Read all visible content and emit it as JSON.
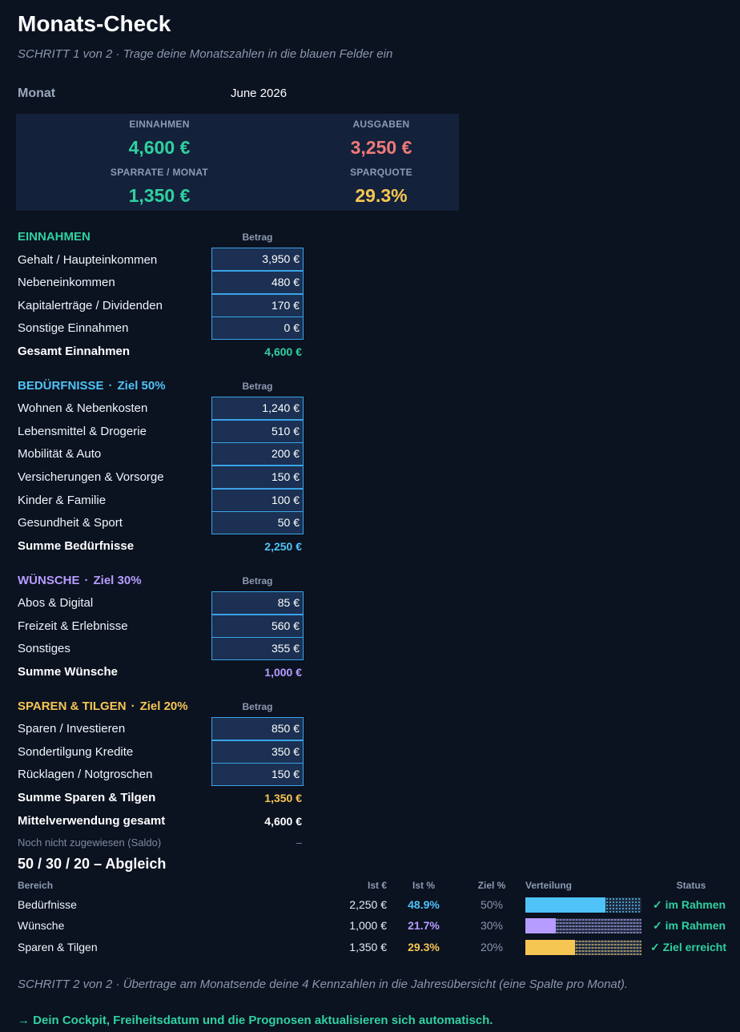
{
  "header": {
    "title": "Monats-Check",
    "subtitle": "SCHRITT 1 von 2 · Trage deine Monatszahlen in die blauen Felder ein",
    "month_label": "Monat",
    "month_value": "June 2026"
  },
  "kpis": {
    "income_label": "EINNAHMEN",
    "income_value": "4,600 €",
    "expense_label": "AUSGABEN",
    "expense_value": "3,250 €",
    "savings_label": "SPARRATE / MONAT",
    "savings_value": "1,350 €",
    "rate_label": "SPARQUOTE",
    "rate_value": "29.3%"
  },
  "colors": {
    "income": "#2fd1a0",
    "expense": "#f07a7a",
    "savings": "#2fd1a0",
    "rate": "#f6c653",
    "needs": "#4fc3f7",
    "wants": "#b79cff",
    "saving": "#f6c653",
    "status_ok": "#2fd1a0"
  },
  "column_header": "Betrag",
  "income": {
    "heading": "EINNAHMEN",
    "rows": [
      {
        "label": "Gehalt / Haupteinkommen",
        "value": "3,950 €"
      },
      {
        "label": "Nebeneinkommen",
        "value": "480 €"
      },
      {
        "label": "Kapitalerträge / Dividenden",
        "value": "170 €"
      },
      {
        "label": "Sonstige Einnahmen",
        "value": "0 €"
      }
    ],
    "total_label": "Gesamt Einnahmen",
    "total_value": "4,600 €"
  },
  "needs": {
    "heading": "BEDÜRFNISSE",
    "target": "Ziel 50%",
    "rows": [
      {
        "label": "Wohnen & Nebenkosten",
        "value": "1,240 €"
      },
      {
        "label": "Lebensmittel & Drogerie",
        "value": "510 €"
      },
      {
        "label": "Mobilität & Auto",
        "value": "200 €"
      },
      {
        "label": "Versicherungen & Vorsorge",
        "value": "150 €"
      },
      {
        "label": "Kinder & Familie",
        "value": "100 €"
      },
      {
        "label": "Gesundheit & Sport",
        "value": "50 €"
      }
    ],
    "total_label": "Summe Bedürfnisse",
    "total_value": "2,250 €"
  },
  "wants": {
    "heading": "WÜNSCHE",
    "target": "Ziel 30%",
    "rows": [
      {
        "label": "Abos & Digital",
        "value": "85 €"
      },
      {
        "label": "Freizeit & Erlebnisse",
        "value": "560 €"
      },
      {
        "label": "Sonstiges",
        "value": "355 €"
      }
    ],
    "total_label": "Summe Wünsche",
    "total_value": "1,000 €"
  },
  "saving": {
    "heading": "SPAREN & TILGEN",
    "target": "Ziel 20%",
    "rows": [
      {
        "label": "Sparen / Investieren",
        "value": "850 €"
      },
      {
        "label": "Sondertilgung Kredite",
        "value": "350 €"
      },
      {
        "label": "Rücklagen / Notgroschen",
        "value": "150 €"
      }
    ],
    "total_label": "Summe Sparen & Tilgen",
    "total_value": "1,350 €"
  },
  "allocation": {
    "total_label": "Mittelverwendung gesamt",
    "total_value": "4,600 €",
    "unassigned_label": "Noch nicht zugewiesen (Saldo)",
    "unassigned_value": "–"
  },
  "comparison": {
    "title": "50 / 30 / 20 – Abgleich",
    "headers": {
      "area": "Bereich",
      "actual_eur": "Ist €",
      "actual_pct": "Ist %",
      "target_pct": "Ziel %",
      "distribution": "Verteilung",
      "status": "Status"
    },
    "rows": [
      {
        "area": "Bedürfnisse",
        "actual_eur": "2,250 €",
        "actual_pct": "48.9%",
        "target_pct": "50%",
        "fill": 0.69,
        "status": "✓ im Rahmen"
      },
      {
        "area": "Wünsche",
        "actual_eur": "1,000 €",
        "actual_pct": "21.7%",
        "target_pct": "30%",
        "fill": 0.26,
        "status": "✓ im Rahmen"
      },
      {
        "area": "Sparen & Tilgen",
        "actual_eur": "1,350 €",
        "actual_pct": "29.3%",
        "target_pct": "20%",
        "fill": 0.43,
        "status": "✓ Ziel erreicht"
      }
    ]
  },
  "footer": {
    "step2": "SCHRITT 2 von 2 · Übertrage am Monatsende deine 4 Kennzahlen in die Jahresübersicht (eine Spalte pro Monat).",
    "arrow": "→",
    "note": "Dein Cockpit, Freiheitsdatum und die Prognosen aktualisieren sich automatisch."
  }
}
